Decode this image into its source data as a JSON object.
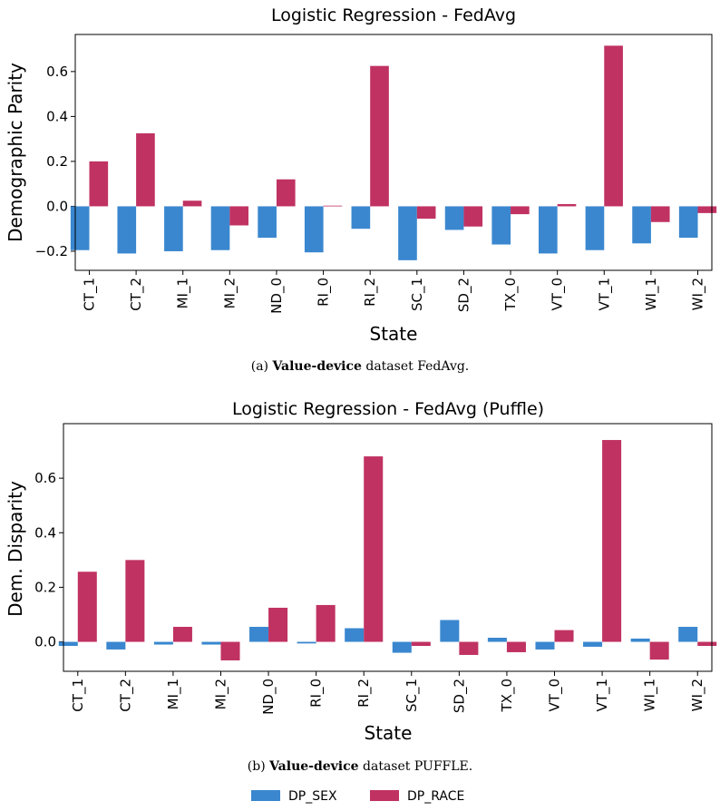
{
  "colors": {
    "dp_sex": "#3a87cf",
    "dp_race": "#c03262"
  },
  "legend": [
    {
      "label": "DP_SEX",
      "color": "#3a87cf"
    },
    {
      "label": "DP_RACE",
      "color": "#c03262"
    }
  ],
  "captions": [
    {
      "prefix": "(a) ",
      "bold": "Value-device",
      "suffix": " dataset FedAvg."
    },
    {
      "prefix": "(b) ",
      "bold": "Value-device",
      "suffix": " dataset PUFFLE."
    }
  ],
  "chart_data": [
    {
      "type": "bar",
      "title": "Logistic Regression - FedAvg",
      "xlabel": "State",
      "ylabel": "Demographic Parity",
      "ylim": [
        -0.285,
        0.765
      ],
      "yticks": [
        -0.2,
        0.0,
        0.2,
        0.4,
        0.6
      ],
      "ytick_labels": [
        "−0.2",
        "0.0",
        "0.2",
        "0.4",
        "0.6"
      ],
      "grid": false,
      "categories": [
        "CT_1",
        "CT_2",
        "MI_1",
        "MI_2",
        "ND_0",
        "RI_0",
        "RI_2",
        "SC_1",
        "SD_2",
        "TX_0",
        "VT_0",
        "VT_1",
        "WI_1",
        "WI_2"
      ],
      "series": [
        {
          "name": "DP_SEX",
          "values": [
            -0.195,
            -0.21,
            -0.2,
            -0.195,
            -0.14,
            -0.205,
            -0.1,
            -0.24,
            -0.105,
            -0.17,
            -0.21,
            -0.195,
            -0.165,
            -0.14
          ]
        },
        {
          "name": "DP_RACE",
          "values": [
            0.2,
            0.325,
            0.025,
            -0.085,
            0.12,
            0.003,
            0.625,
            -0.055,
            -0.09,
            -0.035,
            0.01,
            0.715,
            -0.07,
            -0.03
          ]
        }
      ]
    },
    {
      "type": "bar",
      "title": "Logistic Regression - FedAvg (Puffle)",
      "xlabel": "State",
      "ylabel": "Dem. Disparity",
      "ylim": [
        -0.108,
        0.8
      ],
      "yticks": [
        0.0,
        0.2,
        0.4,
        0.6
      ],
      "ytick_labels": [
        "0.0",
        "0.2",
        "0.4",
        "0.6"
      ],
      "grid": false,
      "categories": [
        "CT_1",
        "CT_2",
        "MI_1",
        "MI_2",
        "ND_0",
        "RI_0",
        "RI_2",
        "SC_1",
        "SD_2",
        "TX_0",
        "VT_0",
        "VT_1",
        "WI_1",
        "WI_2"
      ],
      "series": [
        {
          "name": "DP_SEX",
          "values": [
            -0.015,
            -0.028,
            -0.01,
            -0.01,
            0.055,
            -0.006,
            0.05,
            -0.04,
            0.08,
            0.015,
            -0.028,
            -0.018,
            0.012,
            0.055
          ]
        },
        {
          "name": "DP_RACE",
          "values": [
            0.257,
            0.3,
            0.055,
            -0.068,
            0.125,
            0.135,
            0.68,
            -0.015,
            -0.048,
            -0.038,
            0.043,
            0.74,
            -0.065,
            -0.015
          ]
        }
      ]
    }
  ]
}
